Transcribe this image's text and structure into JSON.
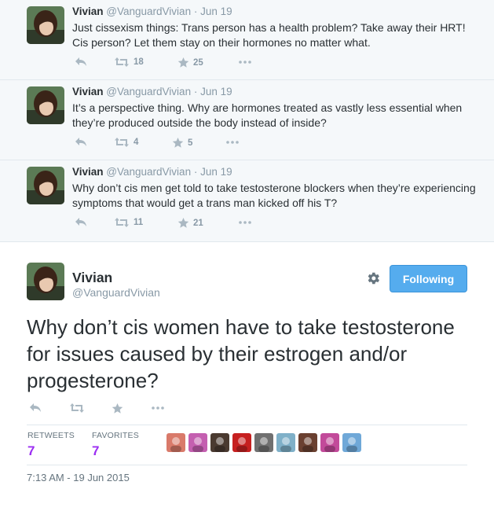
{
  "thread": [
    {
      "name": "Vivian",
      "handle": "@VanguardVivian",
      "dot": "·",
      "date": "Jun 19",
      "text": "Just cissexism things: Trans person has a health problem? Take away their HRT! Cis person? Let them stay on their hormones no matter what.",
      "retweets": "18",
      "favorites": "25"
    },
    {
      "name": "Vivian",
      "handle": "@VanguardVivian",
      "dot": "·",
      "date": "Jun 19",
      "text": "It’s a perspective thing. Why are hormones treated as vastly less essential when they’re produced outside the body instead of inside?",
      "retweets": "4",
      "favorites": "5"
    },
    {
      "name": "Vivian",
      "handle": "@VanguardVivian",
      "dot": "·",
      "date": "Jun 19",
      "text": "Why don’t cis men get told to take testosterone blockers when they’re experiencing symptoms that would get a trans man kicked off his T?",
      "retweets": "11",
      "favorites": "21"
    }
  ],
  "main": {
    "name": "Vivian",
    "handle": "@VanguardVivian",
    "follow_label": "Following",
    "text": "Why don’t cis women have to take testosterone for issues caused by their estrogen and/or progesterone?",
    "stats": {
      "retweets_label": "RETWEETS",
      "retweets_value": "7",
      "favorites_label": "FAVORITES",
      "favorites_value": "7"
    },
    "timestamp": "7:13 AM - 19 Jun 2015",
    "favoriter_avatar_colors": [
      "#d97a6a",
      "#c45fb0",
      "#4a3a30",
      "#c62020",
      "#707070",
      "#7fb0c8",
      "#6a4030",
      "#c24a9a",
      "#6fa8d8"
    ]
  },
  "colors": {
    "accent": "#55acee",
    "stat_value": "#9b2ef2",
    "icon_gray": "#aab8c2"
  },
  "icons": {
    "reply": "reply-icon",
    "retweet": "retweet-icon",
    "favorite": "star-icon",
    "more": "more-icon",
    "settings": "gear-icon"
  }
}
